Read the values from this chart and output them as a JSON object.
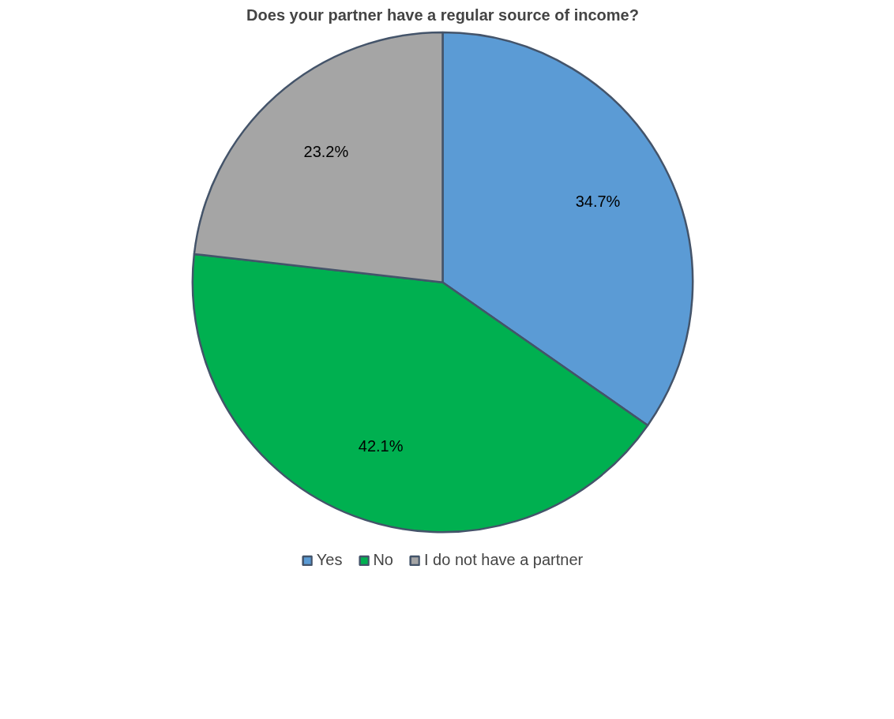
{
  "chart_data": {
    "type": "pie",
    "title": "Does your partner have a regular source of income?",
    "categories": [
      "Yes",
      "No",
      "I do not have a partner"
    ],
    "values": [
      34.7,
      42.1,
      23.2
    ],
    "colors": [
      "#5b9bd5",
      "#00b050",
      "#a5a5a5"
    ],
    "value_labels": [
      "34.7%",
      "42.1%",
      "23.2%"
    ],
    "legend": "bottom"
  }
}
